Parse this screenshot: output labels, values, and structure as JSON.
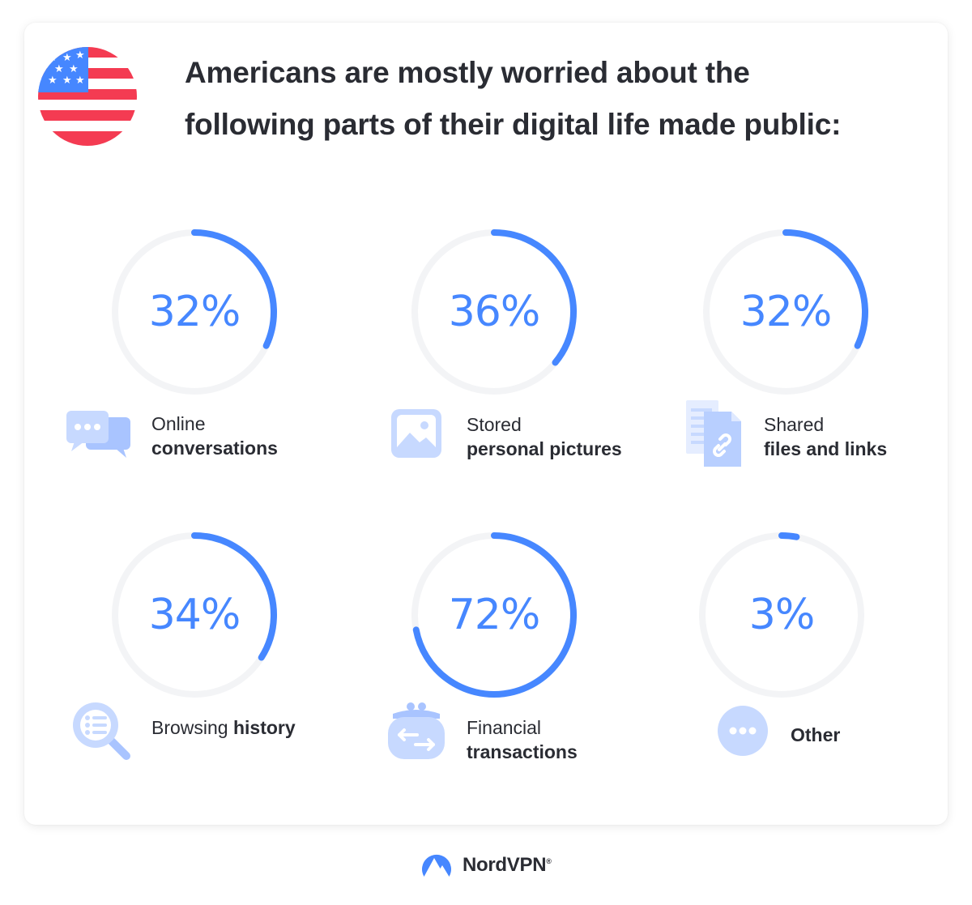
{
  "title_line1": "Americans are mostly worried about the",
  "title_line2": "following parts of their digital life made public:",
  "brand": "NordVPN",
  "trademark": "®",
  "colors": {
    "accent": "#4687ff",
    "track": "#f3f4f6",
    "icon": "#c7d9ff",
    "icon_dark": "#a9c4ff"
  },
  "chart_data": {
    "type": "donut",
    "unit": "%",
    "items": [
      {
        "value": 32,
        "display": "32%",
        "label_plain": "Online",
        "label_bold": "conversations",
        "icon": "chat-bubbles-icon"
      },
      {
        "value": 36,
        "display": "36%",
        "label_plain": "Stored",
        "label_bold": "personal pictures",
        "icon": "picture-icon"
      },
      {
        "value": 32,
        "display": "32%",
        "label_plain": "Shared",
        "label_bold": "files and links",
        "icon": "file-link-icon"
      },
      {
        "value": 34,
        "display": "34%",
        "label_plain": "Browsing ",
        "label_bold": "history",
        "icon": "magnifier-list-icon"
      },
      {
        "value": 72,
        "display": "72%",
        "label_plain": "Financial",
        "label_bold": "transactions",
        "icon": "wallet-icon"
      },
      {
        "value": 3,
        "display": "3%",
        "label_plain": "",
        "label_bold": "Other",
        "icon": "more-dots-icon"
      }
    ]
  }
}
